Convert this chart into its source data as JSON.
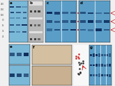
{
  "fig_bg": "#f0f0f0",
  "blue_light": "#7ab8d8",
  "blue_mid": "#5a9ec8",
  "blue_dark": "#1a4a7a",
  "blue_band": "#0a2a5a",
  "white": "#ffffff",
  "black": "#000000",
  "red": "#cc2222",
  "gray_bg": "#c8c8c8",
  "gel_bg": "#d8d8d8",
  "brown": "#c8a878",
  "panel_a_color": "#7ab8d8",
  "panel_c_color": "#6aaed0",
  "panel_d_color": "#6aaed0",
  "panel_e_color": "#7ab8d8",
  "panel_g_color": "#6aaed0"
}
